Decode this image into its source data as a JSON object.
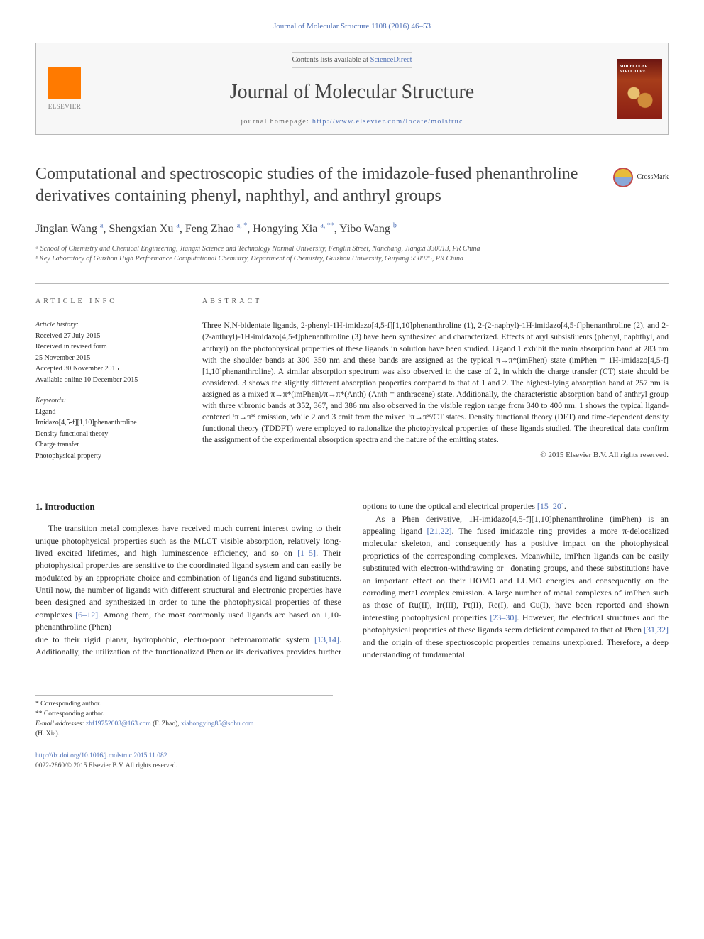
{
  "header": {
    "journal_ref": "Journal of Molecular Structure 1108 (2016) 46–53",
    "contents_prefix": "Contents lists available at ",
    "contents_link": "ScienceDirect",
    "journal_name": "Journal of Molecular Structure",
    "homepage_label": "journal homepage: ",
    "homepage_url": "http://www.elsevier.com/locate/molstruc",
    "publisher": "ELSEVIER",
    "cover_label": "MOLECULAR STRUCTURE"
  },
  "crossmark_label": "CrossMark",
  "title": "Computational and spectroscopic studies of the imidazole-fused phenanthroline derivatives containing phenyl, naphthyl, and anthryl groups",
  "authors_html": "Jinglan Wang <sup class='a'>a</sup>, Shengxian Xu <sup class='a'>a</sup>, Feng Zhao <sup class='a'>a, *</sup>, Hongying Xia <sup class='a'>a, **</sup>, Yibo Wang <sup class='a'>b</sup>",
  "affiliations": [
    "ᵃ School of Chemistry and Chemical Engineering, Jiangxi Science and Technology Normal University, Fenglin Street, Nanchang, Jiangxi 330013, PR China",
    "ᵇ Key Laboratory of Guizhou High Performance Computational Chemistry, Department of Chemistry, Guizhou University, Guiyang 550025, PR China"
  ],
  "info": {
    "head": "ARTICLE INFO",
    "history_label": "Article history:",
    "history": [
      "Received 27 July 2015",
      "Received in revised form",
      "25 November 2015",
      "Accepted 30 November 2015",
      "Available online 10 December 2015"
    ],
    "keywords_label": "Keywords:",
    "keywords": [
      "Ligand",
      "Imidazo[4,5-f][1,10]phenanthroline",
      "Density functional theory",
      "Charge transfer",
      "Photophysical property"
    ]
  },
  "abstract": {
    "head": "ABSTRACT",
    "text": "Three N,N-bidentate ligands, 2-phenyl-1H-imidazo[4,5-f][1,10]phenanthroline (1), 2-(2-naphyl)-1H-imidazo[4,5-f]phenanthroline (2), and 2-(2-anthryl)-1H-imidazo[4,5-f]phenanthroline (3) have been synthesized and characterized. Effects of aryl subsistiuents (phenyl, naphthyl, and anthryl) on the photophysical properties of these ligands in solution have been studied. Ligand 1 exhibit the main absorption band at 283 nm with the shoulder bands at 300–350 nm and these bands are assigned as the typical π→π*(imPhen) state (imPhen = 1H-imidazo[4,5-f][1,10]phenanthroline). A similar absorption spectrum was also observed in the case of 2, in which the charge transfer (CT) state should be considered. 3 shows the slightly different absorption properties compared to that of 1 and 2. The highest-lying absorption band at 257 nm is assigned as a mixed π→π*(imPhen)/π→π*(Anth) (Anth = anthracene) state. Additionally, the characteristic absorption band of anthryl group with three vibronic bands at 352, 367, and 386 nm also observed in the visible region range from 340 to 400 nm. 1 shows the typical ligand-centered ¹π→π* emission, while 2 and 3 emit from the mixed ¹π→π*/CT states. Density functional theory (DFT) and time-dependent density functional theory (TDDFT) were employed to rationalize the photophysical properties of these ligands studied. The theoretical data confirm the assignment of the experimental absorption spectra and the nature of the emitting states.",
    "copyright": "© 2015 Elsevier B.V. All rights reserved."
  },
  "section1": {
    "heading": "1. Introduction",
    "para1_html": "The transition metal complexes have received much current interest owing to their unique photophysical properties such as the MLCT visible absorption, relatively long-lived excited lifetimes, and high luminescence efficiency, and so on <a href='#'>[1–5]</a>. Their photophysical properties are sensitive to the coordinated ligand system and can easily be modulated by an appropriate choice and combination of ligands and ligand substituents. Until now, the number of ligands with different structural and electronic properties have been designed and synthesized in order to tune the photophysical properties of these complexes <a href='#'>[6–12]</a>. Among them, the most commonly used ligands are based on 1,10-phenanthroline (Phen)",
    "para2_html": "due to their rigid planar, hydrophobic, electro-poor heteroaromatic system <a href='#'>[13,14]</a>. Additionally, the utilization of the functionalized Phen or its derivatives provides further options to tune the optical and electrical properties <a href='#'>[15–20]</a>.",
    "para3_html": "As a Phen derivative, 1H-imidazo[4,5-f][1,10]phenanthroline (imPhen) is an appealing ligand <a href='#'>[21,22]</a>. The fused imidazole ring provides a more π-delocalized molecular skeleton, and consequently has a positive impact on the photophysical proprieties of the corresponding complexes. Meanwhile, imPhen ligands can be easily substituted with electron-withdrawing or –donating groups, and these substitutions have an important effect on their HOMO and LUMO energies and consequently on the corroding metal complex emission. A large number of metal complexes of imPhen such as those of Ru(II), Ir(III), Pt(II), Re(I), and Cu(I), have been reported and shown interesting photophysical properties <a href='#'>[23–30]</a>. However, the electrical structures and the photophysical properties of these ligands seem deficient compared to that of Phen <a href='#'>[31,32]</a> and the origin of these spectroscopic properties remains unexplored. Therefore, a deep understanding of fundamental"
  },
  "footnotes": {
    "corr1": "* Corresponding author.",
    "corr2": "** Corresponding author.",
    "emails_label": "E-mail addresses: ",
    "email1": "zhf19752003@163.com",
    "email1_who": " (F. Zhao), ",
    "email2": "xiahongying85@sohu.com",
    "email2_who": "(H. Xia)."
  },
  "footer": {
    "doi": "http://dx.doi.org/10.1016/j.molstruc.2015.11.082",
    "issn_line": "0022-2860/© 2015 Elsevier B.V. All rights reserved."
  },
  "colors": {
    "link": "#4b6db5",
    "text": "#2b2b2b",
    "border": "#b8b8b8",
    "elsevier_orange": "#ff7a00",
    "cover_red": "#6b1512"
  }
}
